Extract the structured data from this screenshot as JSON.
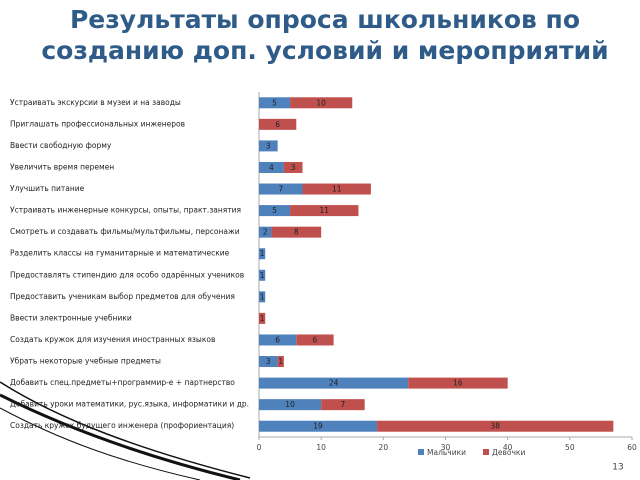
{
  "chart_data": {
    "type": "bar",
    "orientation": "horizontal",
    "stacked": true,
    "title": "Результаты опроса школьников по созданию доп. условий и мероприятий",
    "categories": [
      "Устраивать экскурсии в музеи и на заводы",
      "Приглашать профессиональных инженеров",
      "Ввести свободную форму",
      "Увеличить время перемен",
      "Улучшить питание",
      "Устраивать инженерные конкурсы, опыты, практ.занятия",
      "Смотреть и создавать фильмы/мультфильмы, персонажи",
      "Разделить классы на гуманитарные и математические",
      "Предоставлять стипендию для особо одарённых учеников",
      "Предоставить ученикам выбор предметов для обучения",
      "Ввести электронные учебники",
      "Создать кружок для изучения иностранных языков",
      "Убрать некоторые учебные предметы",
      "Добавить спец.предметы+программир-е + партнерство",
      "Добавить уроки математики, рус.языка, информатики и др.",
      "Создать кружок будущего инженера (профориентация)"
    ],
    "series": [
      {
        "name": "Мальчики",
        "color": "#4f81bd",
        "values": [
          5,
          null,
          3,
          4,
          7,
          5,
          2,
          1,
          1,
          1,
          null,
          6,
          3,
          24,
          10,
          19
        ]
      },
      {
        "name": "Девочки",
        "color": "#c0504d",
        "values": [
          10,
          6,
          null,
          3,
          11,
          11,
          8,
          null,
          null,
          null,
          1,
          6,
          1,
          16,
          7,
          38
        ]
      }
    ],
    "xlim": [
      0,
      60
    ],
    "xticks": [
      0,
      10,
      20,
      30,
      40,
      50,
      60
    ],
    "legend": "bottom",
    "page_number": "13"
  }
}
